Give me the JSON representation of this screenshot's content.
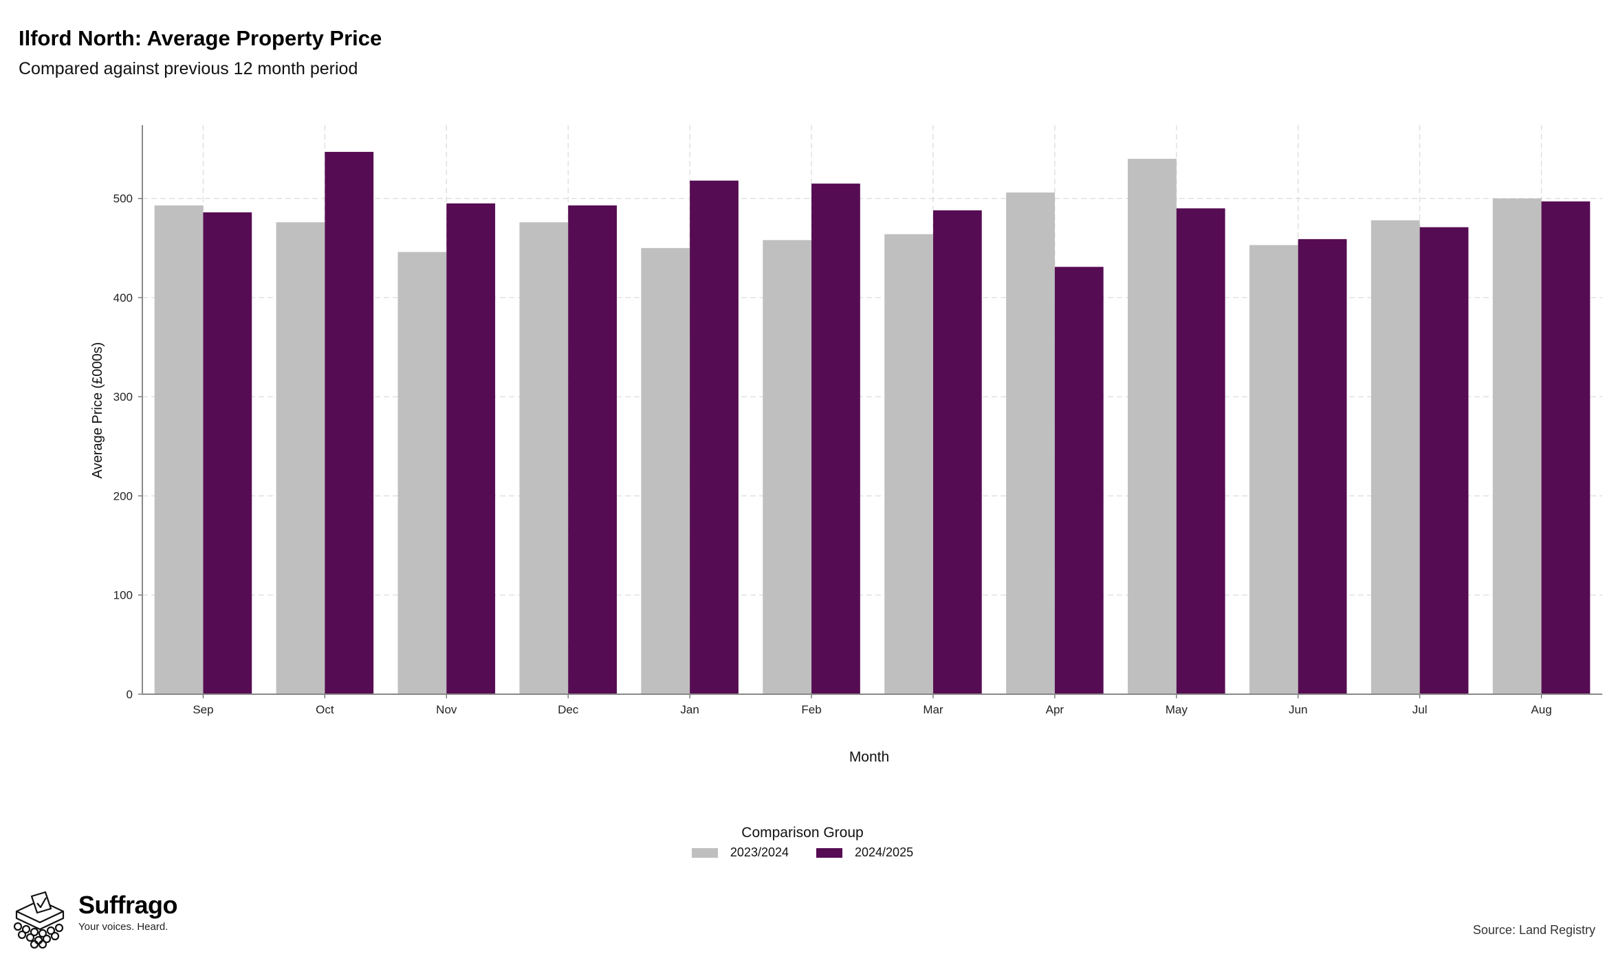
{
  "header": {
    "title": "Ilford North: Average Property Price",
    "subtitle": "Compared against previous 12 month period"
  },
  "chart_data": {
    "type": "bar",
    "title": "Ilford North: Average Property Price",
    "subtitle": "Compared against previous 12 month period",
    "xlabel": "Month",
    "ylabel": "Average Price (£000s)",
    "ylim": [
      0,
      574
    ],
    "yticks": [
      0,
      100,
      200,
      300,
      400,
      500
    ],
    "grid": true,
    "legend_title": "Comparison Group",
    "legend_position": "bottom",
    "categories": [
      "Sep",
      "Oct",
      "Nov",
      "Dec",
      "Jan",
      "Feb",
      "Mar",
      "Apr",
      "May",
      "Jun",
      "Jul",
      "Aug"
    ],
    "series": [
      {
        "name": "2023/2024",
        "color": "#bfbfbf",
        "values": [
          493,
          476,
          446,
          476,
          450,
          458,
          464,
          506,
          540,
          453,
          478,
          500
        ]
      },
      {
        "name": "2024/2025",
        "color": "#560c52",
        "values": [
          486,
          547,
          495,
          493,
          518,
          515,
          488,
          431,
          490,
          459,
          471,
          497
        ]
      }
    ]
  },
  "footer": {
    "brand": "Suffrago",
    "tagline": "Your voices. Heard.",
    "source": "Source: Land Registry"
  },
  "icons": {
    "logo": "ballot-box-icon"
  }
}
